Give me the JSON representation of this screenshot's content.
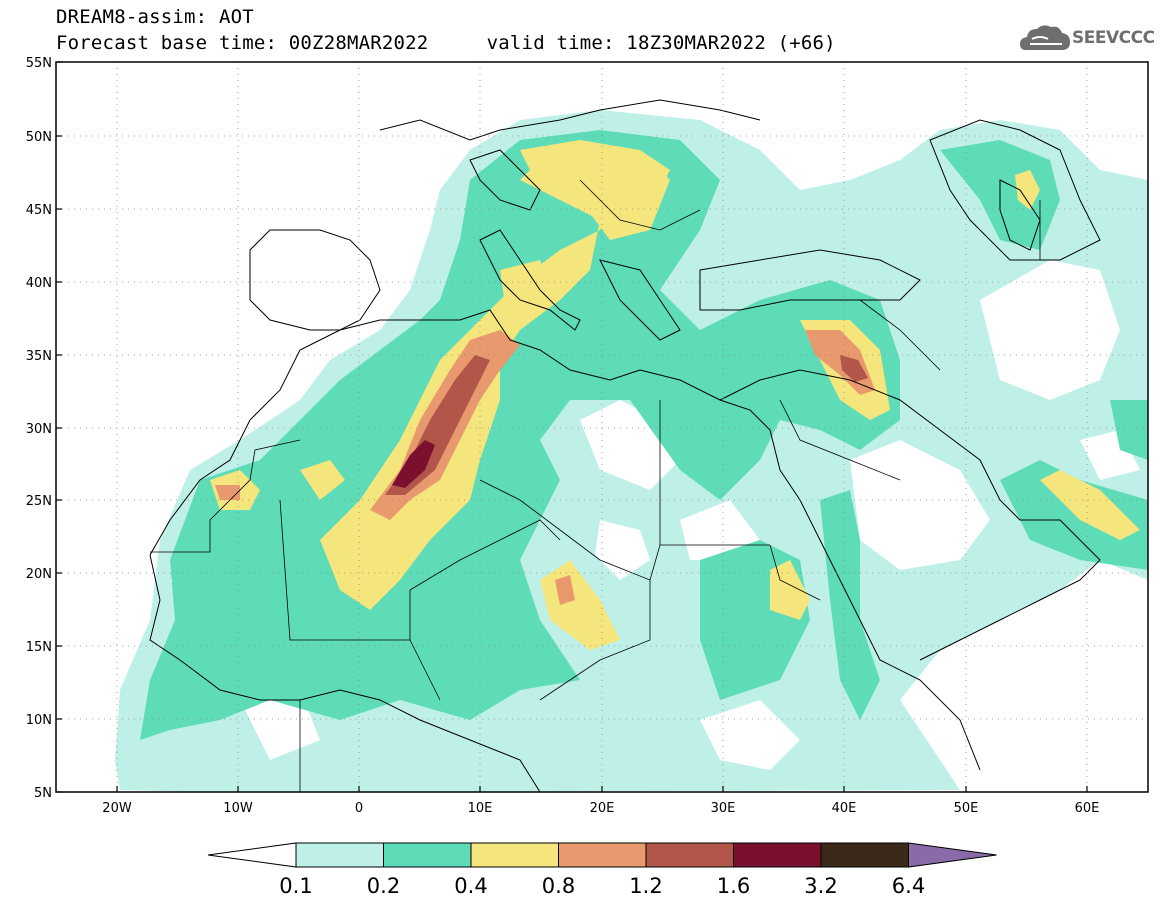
{
  "header": {
    "line1": "DREAM8-assim: AOT",
    "line2": "Forecast base time: 00Z28MAR2022     valid time: 18Z30MAR2022 (+66)",
    "logo_text": "SEEVCCC"
  },
  "map": {
    "lat_range": [
      5,
      55
    ],
    "lon_range": [
      -25,
      65
    ],
    "lat_labels": [
      "55N",
      "50N",
      "45N",
      "40N",
      "35N",
      "30N",
      "25N",
      "20N",
      "15N",
      "10N",
      "5N"
    ],
    "lon_labels": [
      "20W",
      "10W",
      "0",
      "10E",
      "20E",
      "30E",
      "40E",
      "50E",
      "60E"
    ],
    "grid_style": "dotted"
  },
  "legend": {
    "levels": [
      "0.1",
      "0.2",
      "0.4",
      "0.8",
      "1.2",
      "1.6",
      "3.2",
      "6.4"
    ],
    "colors": [
      "#ffffff",
      "#bff0e8",
      "#5edcb8",
      "#f4e57c",
      "#e89a6e",
      "#b2564a",
      "#7a0f2e",
      "#3b2a1a",
      "#8a6aa8"
    ]
  }
}
